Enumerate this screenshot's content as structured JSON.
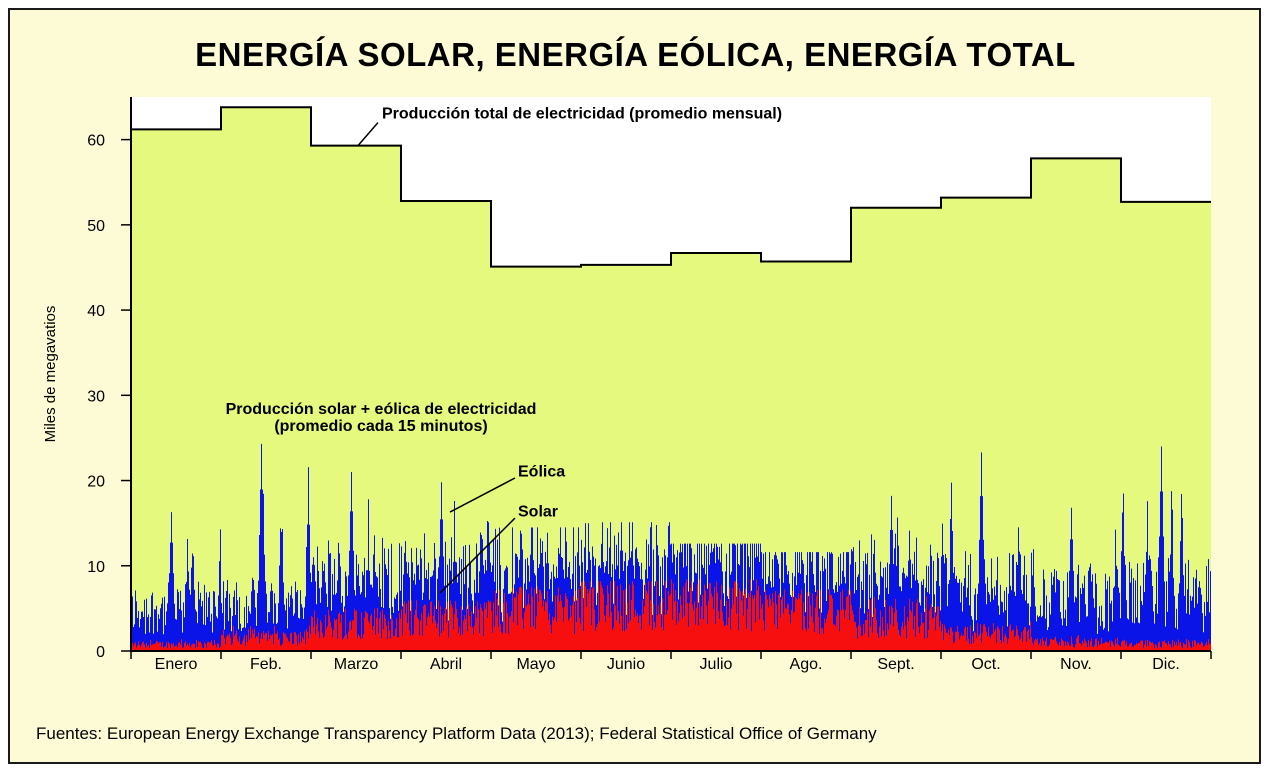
{
  "chart_data": {
    "type": "area",
    "title": "ENERGÍA SOLAR, ENERGÍA EÓLICA, ENERGÍA TOTAL",
    "ylabel": "Miles de megavatios",
    "xlabel": "",
    "ylim": [
      0,
      65
    ],
    "yticks": [
      0,
      10,
      20,
      30,
      40,
      50,
      60
    ],
    "categories": [
      "Enero",
      "Feb.",
      "Marzo",
      "Abril",
      "Mayo",
      "Junio",
      "Julio",
      "Ago.",
      "Sept.",
      "Oct.",
      "Nov.",
      "Dic."
    ],
    "series": [
      {
        "name": "Producción total de electricidad (promedio mensual)",
        "color": "#e4f97e",
        "values": [
          61.2,
          63.8,
          59.3,
          52.8,
          45.1,
          45.3,
          46.7,
          45.7,
          52.0,
          53.2,
          57.8,
          52.7
        ]
      },
      {
        "name": "Eólica",
        "color": "#0a14e6",
        "description": "Producción solar + eólica de electricidad (promedio cada 15 minutos)",
        "peaks": [
          16.3,
          24.3,
          21.0,
          19.8,
          14.5,
          15.1,
          12.6,
          11.6,
          18.2,
          23.3,
          16.8,
          24.0
        ],
        "typical": [
          7.0,
          6.5,
          9.0,
          9.0,
          8.5,
          9.5,
          9.5,
          8.5,
          8.0,
          9.0,
          8.5,
          10.0
        ]
      },
      {
        "name": "Solar",
        "color": "#f70f0f",
        "peaks": [
          1.5,
          3.0,
          5.5,
          6.0,
          7.6,
          8.2,
          8.4,
          7.2,
          6.5,
          3.5,
          2.0,
          1.5
        ],
        "typical": [
          0.9,
          1.8,
          3.8,
          4.5,
          5.6,
          6.6,
          6.6,
          5.6,
          4.0,
          2.3,
          1.2,
          0.9
        ]
      }
    ],
    "annotations": {
      "total": "Producción total de electricidad (promedio mensual)",
      "renewables_line1": "Producción solar + eólica de electricidad",
      "renewables_line2": "(promedio cada 15 minutos)",
      "wind": "Eólica",
      "solar": "Solar"
    },
    "colors": {
      "background": "#fdfbd6",
      "total_fill": "#e4f97e",
      "wind": "#0a14e6",
      "solar": "#f70f0f"
    }
  },
  "footer": {
    "source": "Fuentes: European Energy Exchange Transparency Platform Data (2013); Federal Statistical Office of Germany"
  }
}
